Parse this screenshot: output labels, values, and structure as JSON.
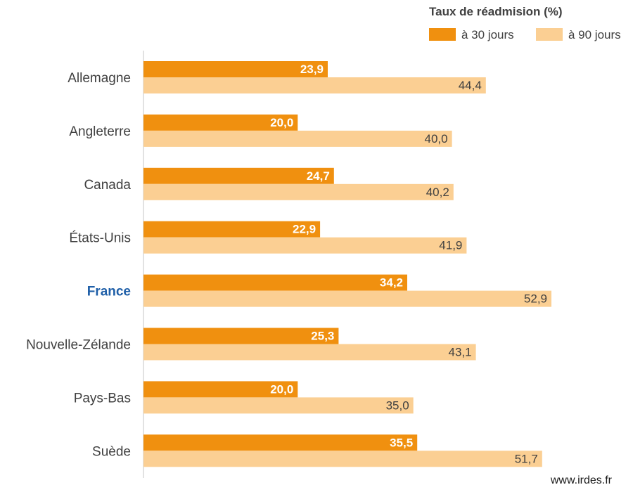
{
  "chart_data": {
    "type": "bar",
    "orientation": "horizontal",
    "title": "Taux de réadmision (%)",
    "categories": [
      "Allemagne",
      "Angleterre",
      "Canada",
      "États-Unis",
      "France",
      "Nouvelle-Zélande",
      "Pays-Bas",
      "Suède"
    ],
    "highlight_category": "France",
    "highlight_color": "#1f5fa8",
    "series": [
      {
        "name": "à 30 jours",
        "color": "#f0900f",
        "values": [
          23.9,
          20.0,
          24.7,
          22.9,
          34.2,
          25.3,
          20.0,
          35.5
        ],
        "labels": [
          "23,9",
          "20,0",
          "24,7",
          "22,9",
          "34,2",
          "25,3",
          "20,0",
          "35,5"
        ]
      },
      {
        "name": "à 90 jours",
        "color": "#fbcf93",
        "values": [
          44.4,
          40.0,
          40.2,
          41.9,
          52.9,
          43.1,
          35.0,
          51.7
        ],
        "labels": [
          "44,4",
          "40,0",
          "40,2",
          "41,9",
          "52,9",
          "43,1",
          "35,0",
          "51,7"
        ]
      }
    ],
    "xlim": [
      0,
      60
    ],
    "grid": false,
    "legend_position": "top-right"
  },
  "source": "www.irdes.fr"
}
